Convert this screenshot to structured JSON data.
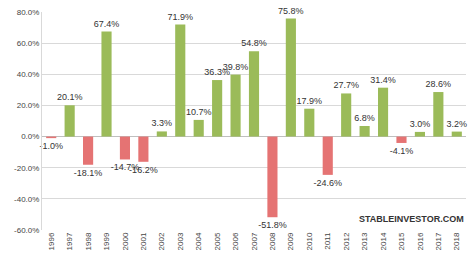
{
  "chart_data": {
    "type": "bar",
    "categories": [
      "1996",
      "1997",
      "1998",
      "1999",
      "2000",
      "2001",
      "2002",
      "2003",
      "2004",
      "2005",
      "2006",
      "2007",
      "2008",
      "2009",
      "2010",
      "2011",
      "2012",
      "2013",
      "2014",
      "2015",
      "2016",
      "2017",
      "2018"
    ],
    "values": [
      -1.0,
      20.1,
      -18.1,
      67.4,
      -14.7,
      -16.2,
      3.3,
      71.9,
      10.7,
      36.3,
      39.8,
      54.8,
      -51.8,
      75.8,
      17.9,
      -24.6,
      27.7,
      6.8,
      31.4,
      -4.1,
      3.0,
      28.6,
      3.2
    ],
    "value_labels": [
      "-1.0%",
      "20.1%",
      "-18.1%",
      "67.4%",
      "-14.7%",
      "-16.2%",
      "3.3%",
      "71.9%",
      "10.7%",
      "36.3%",
      "39.8%",
      "54.8%",
      "-51.8%",
      "75.8%",
      "17.9%",
      "-24.6%",
      "27.7%",
      "6.8%",
      "31.4%",
      "-4.1%",
      "3.0%",
      "28.6%",
      "3.2%"
    ],
    "colors": [
      "#e57373",
      "#9bbb59",
      "#e57373",
      "#9bbb59",
      "#e57373",
      "#e57373",
      "#9bbb59",
      "#9bbb59",
      "#9bbb59",
      "#9bbb59",
      "#9bbb59",
      "#9bbb59",
      "#e57373",
      "#9bbb59",
      "#9bbb59",
      "#e57373",
      "#9bbb59",
      "#9bbb59",
      "#9bbb59",
      "#e57373",
      "#9bbb59",
      "#9bbb59",
      "#9bbb59"
    ],
    "data_labels": true,
    "ylim": [
      -60,
      80
    ],
    "yticks": [
      {
        "value": -60,
        "label": "-60.0%"
      },
      {
        "value": -40,
        "label": "-40.0%"
      },
      {
        "value": -20,
        "label": "-20.0%"
      },
      {
        "value": 0,
        "label": "0.0%"
      },
      {
        "value": 20,
        "label": "20.0%"
      },
      {
        "value": 40,
        "label": "40.0%"
      },
      {
        "value": 60,
        "label": "60.0%"
      },
      {
        "value": 80,
        "label": "80.0%"
      }
    ],
    "grid": true,
    "annotations": [
      "STABLEINVESTOR.COM"
    ]
  }
}
